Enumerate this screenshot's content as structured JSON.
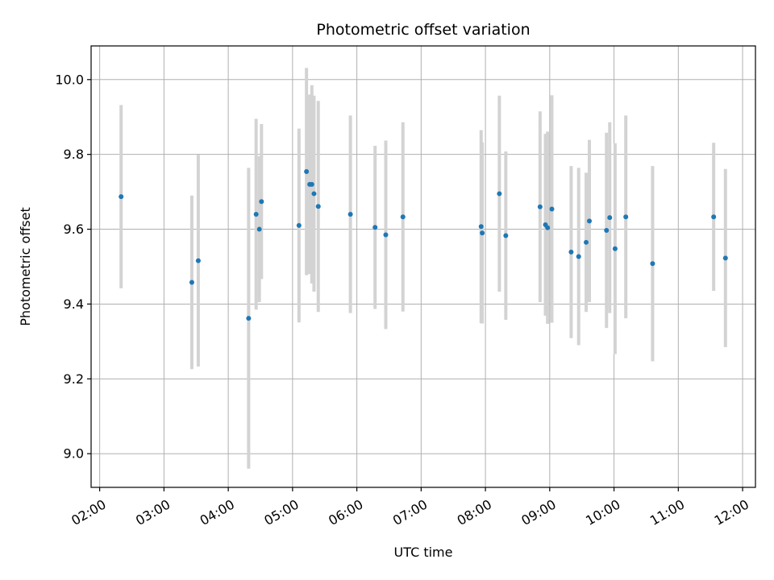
{
  "chart_data": {
    "type": "scatter",
    "title": "Photometric offset variation",
    "xlabel": "UTC time",
    "ylabel": "Photometric offset",
    "x_ticks": [
      "02:00",
      "03:00",
      "04:00",
      "05:00",
      "06:00",
      "07:00",
      "08:00",
      "09:00",
      "10:00",
      "11:00",
      "12:00"
    ],
    "y_ticks": [
      "9.0",
      "9.2",
      "9.4",
      "9.6",
      "9.8",
      "10.0"
    ],
    "xlim": [
      "01:52",
      "12:12"
    ],
    "ylim": [
      8.91,
      10.09
    ],
    "grid": true,
    "point_color": "#1f77b4",
    "error_color": "#d3d3d3",
    "points": [
      {
        "x": "02:20",
        "y": 9.687,
        "err": 0.245
      },
      {
        "x": "03:26",
        "y": 9.458,
        "err": 0.232
      },
      {
        "x": "03:32",
        "y": 9.516,
        "err": 0.283
      },
      {
        "x": "04:19",
        "y": 9.362,
        "err": 0.402
      },
      {
        "x": "04:26",
        "y": 9.64,
        "err": 0.255
      },
      {
        "x": "04:29",
        "y": 9.6,
        "err": 0.195
      },
      {
        "x": "04:31",
        "y": 9.674,
        "err": 0.207
      },
      {
        "x": "05:06",
        "y": 9.61,
        "err": 0.259
      },
      {
        "x": "05:13",
        "y": 9.754,
        "err": 0.277
      },
      {
        "x": "05:16",
        "y": 9.72,
        "err": 0.24
      },
      {
        "x": "05:18",
        "y": 9.72,
        "err": 0.265
      },
      {
        "x": "05:20",
        "y": 9.695,
        "err": 0.262
      },
      {
        "x": "05:24",
        "y": 9.661,
        "err": 0.282
      },
      {
        "x": "05:54",
        "y": 9.64,
        "err": 0.264
      },
      {
        "x": "06:17",
        "y": 9.605,
        "err": 0.218
      },
      {
        "x": "06:27",
        "y": 9.585,
        "err": 0.252
      },
      {
        "x": "06:43",
        "y": 9.633,
        "err": 0.253
      },
      {
        "x": "07:56",
        "y": 9.607,
        "err": 0.258
      },
      {
        "x": "07:57",
        "y": 9.59,
        "err": 0.242
      },
      {
        "x": "08:13",
        "y": 9.695,
        "err": 0.262
      },
      {
        "x": "08:19",
        "y": 9.583,
        "err": 0.225
      },
      {
        "x": "08:51",
        "y": 9.66,
        "err": 0.255
      },
      {
        "x": "08:56",
        "y": 9.612,
        "err": 0.243
      },
      {
        "x": "08:58",
        "y": 9.604,
        "err": 0.257
      },
      {
        "x": "09:02",
        "y": 9.654,
        "err": 0.304
      },
      {
        "x": "09:20",
        "y": 9.539,
        "err": 0.23
      },
      {
        "x": "09:27",
        "y": 9.527,
        "err": 0.237
      },
      {
        "x": "09:34",
        "y": 9.565,
        "err": 0.186
      },
      {
        "x": "09:37",
        "y": 9.622,
        "err": 0.217
      },
      {
        "x": "09:53",
        "y": 9.597,
        "err": 0.261
      },
      {
        "x": "09:56",
        "y": 9.631,
        "err": 0.255
      },
      {
        "x": "10:01",
        "y": 9.548,
        "err": 0.282
      },
      {
        "x": "10:11",
        "y": 9.633,
        "err": 0.271
      },
      {
        "x": "10:36",
        "y": 9.508,
        "err": 0.261
      },
      {
        "x": "11:33",
        "y": 9.633,
        "err": 0.198
      },
      {
        "x": "11:44",
        "y": 9.523,
        "err": 0.238
      }
    ]
  }
}
